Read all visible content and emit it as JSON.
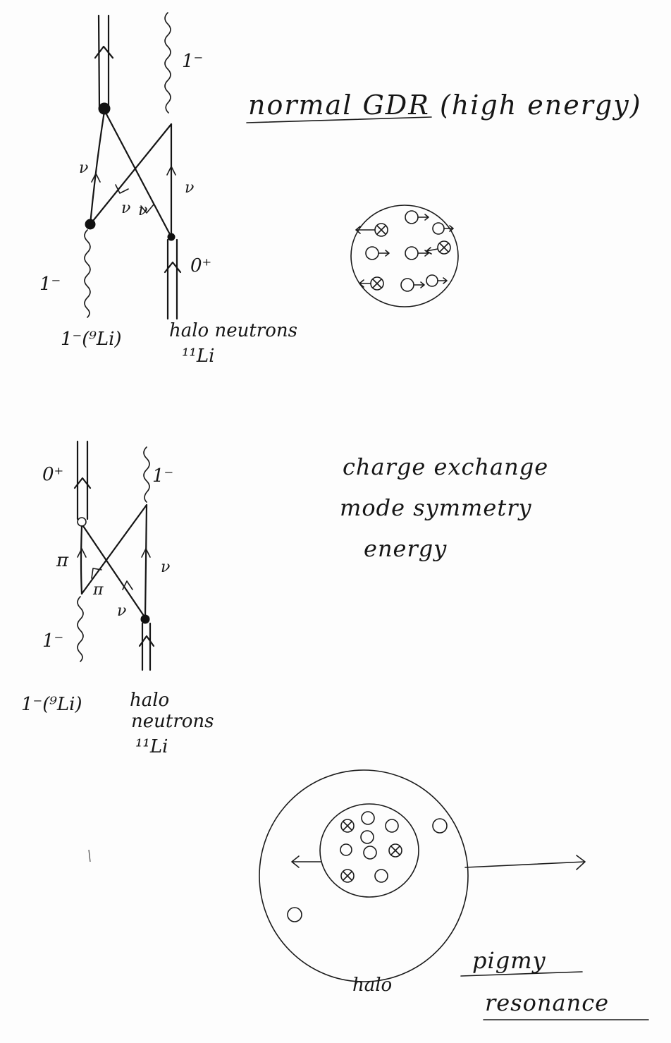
{
  "diagram_top": {
    "label_1minus_upper": "1⁻",
    "label_1minus_left": "1⁻",
    "label_0plus": "0⁺",
    "label_nu": "ν",
    "caption_left": "1⁻(⁹Li)",
    "caption_right_line1": "halo neutrons",
    "caption_right_line2": "¹¹Li",
    "title_normal_gdr": "normal GDR (high energy)"
  },
  "diagram_middle": {
    "label_0plus": "0⁺",
    "label_1minus_upper": "1⁻",
    "label_1minus_left": "1⁻",
    "label_pi": "π",
    "label_nu": "ν",
    "caption_left": "1⁻(⁹Li)",
    "caption_right_line1": "halo",
    "caption_right_line2": "neutrons",
    "caption_right_line3": "¹¹Li",
    "text_line1": "charge exchange",
    "text_line2": "mode symmetry",
    "text_line3": "energy"
  },
  "diagram_bottom": {
    "label_halo": "halo",
    "title_line1": "pigmy",
    "title_line2": "resonance"
  }
}
